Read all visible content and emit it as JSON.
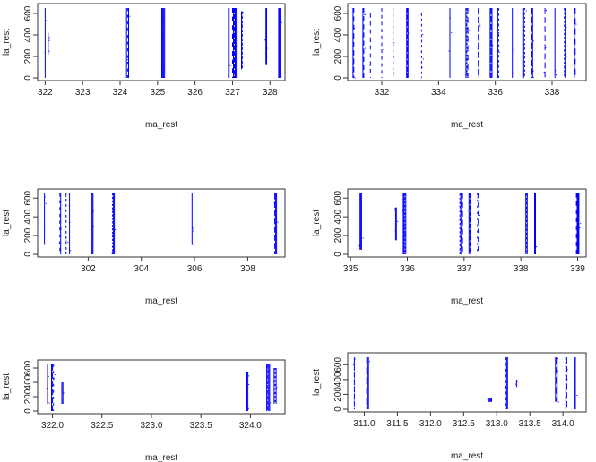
{
  "chart_data": [
    {
      "type": "scatter",
      "xlabel": "ma_rest",
      "ylabel": "la_rest",
      "xlim": [
        321.8,
        328.4
      ],
      "ylim": [
        0,
        650
      ],
      "xticks": [
        322,
        323,
        324,
        325,
        326,
        327,
        328
      ],
      "yticks": [
        0,
        200,
        400,
        600
      ],
      "xtick_labels": [
        "322",
        "323",
        "324",
        "325",
        "326",
        "327",
        "328"
      ],
      "ytick_labels": [
        "0",
        "200",
        "400",
        "600"
      ],
      "color": "#0000ff",
      "clusters": [
        {
          "x": 322.0,
          "width": 0.03,
          "ymin": 0,
          "ymax": 650
        },
        {
          "x": 322.08,
          "width": 0.02,
          "ymin": 220,
          "ymax": 420
        },
        {
          "x": 324.2,
          "width": 0.08,
          "ymin": 0,
          "ymax": 650
        },
        {
          "x": 325.15,
          "width": 0.1,
          "ymin": 0,
          "ymax": 650
        },
        {
          "x": 326.9,
          "width": 0.04,
          "ymin": 0,
          "ymax": 650
        },
        {
          "x": 327.05,
          "width": 0.12,
          "ymin": 0,
          "ymax": 650
        },
        {
          "x": 327.25,
          "width": 0.04,
          "ymin": 80,
          "ymax": 620
        },
        {
          "x": 327.9,
          "width": 0.04,
          "ymin": 120,
          "ymax": 650
        },
        {
          "x": 328.25,
          "width": 0.06,
          "ymin": 0,
          "ymax": 650
        }
      ]
    },
    {
      "type": "scatter",
      "xlabel": "ma_rest",
      "ylabel": "la_rest",
      "xlim": [
        330.8,
        339.2
      ],
      "ylim": [
        0,
        650
      ],
      "xticks": [
        332,
        334,
        336,
        338
      ],
      "yticks": [
        0,
        200,
        400,
        600
      ],
      "xtick_labels": [
        "332",
        "334",
        "336",
        "338"
      ],
      "ytick_labels": [
        "0",
        "200",
        "400",
        "600"
      ],
      "color": "#0000ff",
      "clusters": [
        {
          "x": 331.0,
          "width": 0.06,
          "ymin": 0,
          "ymax": 650
        },
        {
          "x": 331.35,
          "width": 0.06,
          "ymin": 0,
          "ymax": 650
        },
        {
          "x": 331.6,
          "width": 0.04,
          "ymin": 0,
          "ymax": 600
        },
        {
          "x": 332.0,
          "width": 0.03,
          "ymin": 0,
          "ymax": 650
        },
        {
          "x": 332.4,
          "width": 0.04,
          "ymin": 0,
          "ymax": 650
        },
        {
          "x": 332.9,
          "width": 0.08,
          "ymin": 0,
          "ymax": 650
        },
        {
          "x": 333.4,
          "width": 0.03,
          "ymin": 0,
          "ymax": 600
        },
        {
          "x": 334.4,
          "width": 0.03,
          "ymin": 0,
          "ymax": 650
        },
        {
          "x": 335.0,
          "width": 0.1,
          "ymin": 0,
          "ymax": 650
        },
        {
          "x": 335.4,
          "width": 0.04,
          "ymin": 0,
          "ymax": 650
        },
        {
          "x": 335.85,
          "width": 0.1,
          "ymin": 0,
          "ymax": 650
        },
        {
          "x": 336.1,
          "width": 0.06,
          "ymin": 0,
          "ymax": 650
        },
        {
          "x": 336.6,
          "width": 0.04,
          "ymin": 0,
          "ymax": 650
        },
        {
          "x": 337.0,
          "width": 0.1,
          "ymin": 0,
          "ymax": 650
        },
        {
          "x": 337.3,
          "width": 0.06,
          "ymin": 0,
          "ymax": 650
        },
        {
          "x": 337.75,
          "width": 0.04,
          "ymin": 0,
          "ymax": 650
        },
        {
          "x": 338.1,
          "width": 0.04,
          "ymin": 0,
          "ymax": 650
        },
        {
          "x": 338.45,
          "width": 0.06,
          "ymin": 0,
          "ymax": 650
        },
        {
          "x": 338.8,
          "width": 0.06,
          "ymin": 0,
          "ymax": 650
        }
      ]
    },
    {
      "type": "scatter",
      "xlabel": "ma_rest",
      "ylabel": "la_rest",
      "xlim": [
        300.1,
        309.4
      ],
      "ylim": [
        0,
        650
      ],
      "xticks": [
        302,
        304,
        306,
        308
      ],
      "yticks": [
        0,
        200,
        400,
        600
      ],
      "xtick_labels": [
        "302",
        "304",
        "306",
        "308"
      ],
      "ytick_labels": [
        "0",
        "200",
        "400",
        "600"
      ],
      "color": "#0000ff",
      "clusters": [
        {
          "x": 300.35,
          "width": 0.02,
          "ymin": 100,
          "ymax": 650
        },
        {
          "x": 300.95,
          "width": 0.06,
          "ymin": 0,
          "ymax": 650
        },
        {
          "x": 301.15,
          "width": 0.08,
          "ymin": 0,
          "ymax": 650
        },
        {
          "x": 301.3,
          "width": 0.04,
          "ymin": 0,
          "ymax": 650
        },
        {
          "x": 302.15,
          "width": 0.1,
          "ymin": 0,
          "ymax": 650
        },
        {
          "x": 302.95,
          "width": 0.1,
          "ymin": 0,
          "ymax": 650
        },
        {
          "x": 305.9,
          "width": 0.02,
          "ymin": 100,
          "ymax": 650
        },
        {
          "x": 309.05,
          "width": 0.1,
          "ymin": 0,
          "ymax": 650
        }
      ]
    },
    {
      "type": "scatter",
      "xlabel": "ma_rest",
      "ylabel": "la_rest",
      "xlim": [
        334.95,
        339.15
      ],
      "ylim": [
        0,
        650
      ],
      "xticks": [
        335,
        336,
        337,
        338,
        339
      ],
      "yticks": [
        0,
        200,
        400,
        600
      ],
      "xtick_labels": [
        "335",
        "336",
        "337",
        "338",
        "339"
      ],
      "ytick_labels": [
        "0",
        "200",
        "400",
        "600"
      ],
      "color": "#0000ff",
      "clusters": [
        {
          "x": 335.18,
          "width": 0.04,
          "ymin": 50,
          "ymax": 650
        },
        {
          "x": 335.8,
          "width": 0.03,
          "ymin": 150,
          "ymax": 500
        },
        {
          "x": 335.95,
          "width": 0.06,
          "ymin": 0,
          "ymax": 650
        },
        {
          "x": 336.95,
          "width": 0.06,
          "ymin": 0,
          "ymax": 650
        },
        {
          "x": 337.1,
          "width": 0.04,
          "ymin": 0,
          "ymax": 650
        },
        {
          "x": 337.25,
          "width": 0.04,
          "ymin": 0,
          "ymax": 650
        },
        {
          "x": 338.1,
          "width": 0.04,
          "ymin": 0,
          "ymax": 650
        },
        {
          "x": 338.25,
          "width": 0.03,
          "ymin": 0,
          "ymax": 650
        },
        {
          "x": 339.0,
          "width": 0.06,
          "ymin": 0,
          "ymax": 650
        }
      ]
    },
    {
      "type": "scatter",
      "xlabel": "ma_rest",
      "ylabel": "la_rest",
      "xlim": [
        321.85,
        324.35
      ],
      "ylim": [
        0,
        650
      ],
      "xticks": [
        322.0,
        322.5,
        323.0,
        323.5,
        324.0
      ],
      "yticks": [
        0,
        200,
        400,
        600
      ],
      "xtick_labels": [
        "322.0",
        "322.5",
        "323.0",
        "323.5",
        "324.0"
      ],
      "ytick_labels": [
        "0",
        "200",
        "400",
        "600"
      ],
      "color": "#0000ff",
      "clusters": [
        {
          "x": 321.95,
          "width": 0.01,
          "ymin": 100,
          "ymax": 650
        },
        {
          "x": 322.0,
          "width": 0.03,
          "ymin": 0,
          "ymax": 650
        },
        {
          "x": 322.1,
          "width": 0.02,
          "ymin": 100,
          "ymax": 400
        },
        {
          "x": 323.97,
          "width": 0.02,
          "ymin": 0,
          "ymax": 550
        },
        {
          "x": 324.18,
          "width": 0.04,
          "ymin": 0,
          "ymax": 650
        },
        {
          "x": 324.25,
          "width": 0.03,
          "ymin": 100,
          "ymax": 600
        }
      ]
    },
    {
      "type": "scatter",
      "xlabel": "ma_rest",
      "ylabel": "la_rest",
      "xlim": [
        310.75,
        314.35
      ],
      "ylim": [
        0,
        700
      ],
      "xticks": [
        311.0,
        311.5,
        312.0,
        312.5,
        313.0,
        313.5,
        314.0
      ],
      "yticks": [
        0,
        200,
        400,
        600
      ],
      "xtick_labels": [
        "311.0",
        "311.5",
        "312.0",
        "312.5",
        "313.0",
        "313.5",
        "314.0"
      ],
      "ytick_labels": [
        "0",
        "200",
        "400",
        "600"
      ],
      "color": "#0000ff",
      "clusters": [
        {
          "x": 310.85,
          "width": 0.02,
          "ymin": 0,
          "ymax": 700
        },
        {
          "x": 311.05,
          "width": 0.04,
          "ymin": 0,
          "ymax": 700
        },
        {
          "x": 312.9,
          "width": 0.06,
          "ymin": 100,
          "ymax": 150
        },
        {
          "x": 313.15,
          "width": 0.04,
          "ymin": 0,
          "ymax": 700
        },
        {
          "x": 313.3,
          "width": 0.02,
          "ymin": 300,
          "ymax": 400
        },
        {
          "x": 313.9,
          "width": 0.04,
          "ymin": 100,
          "ymax": 700
        },
        {
          "x": 314.05,
          "width": 0.03,
          "ymin": 0,
          "ymax": 700
        },
        {
          "x": 314.18,
          "width": 0.03,
          "ymin": 0,
          "ymax": 700
        }
      ]
    }
  ]
}
